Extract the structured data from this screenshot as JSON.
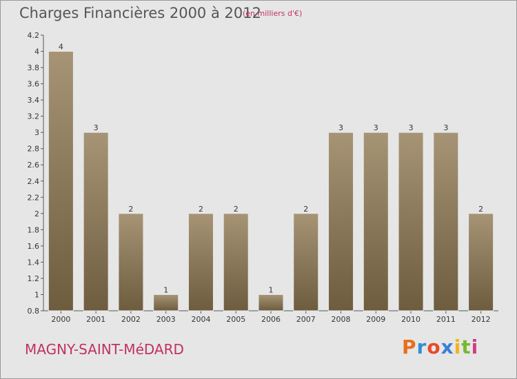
{
  "header": {
    "title": "Charges Financières 2000 à 2012",
    "subtitle": "(en milliers d'€)"
  },
  "footer": {
    "commune": "MAGNY-SAINT-MéDARD",
    "logo": {
      "letters": [
        "P",
        "r",
        "o",
        "x",
        "i",
        "t",
        "i"
      ],
      "colors": [
        "#e8701a",
        "#2e8fd6",
        "#e84a2b",
        "#3a7fd4",
        "#f2b31d",
        "#7bb72f",
        "#d13b8a"
      ]
    }
  },
  "chart_data": {
    "type": "bar",
    "title": "Charges Financières 2000 à 2012",
    "categories": [
      "2000",
      "2001",
      "2002",
      "2003",
      "2004",
      "2005",
      "2006",
      "2007",
      "2008",
      "2009",
      "2010",
      "2011",
      "2012"
    ],
    "values": [
      4,
      3,
      2,
      1,
      2,
      2,
      1,
      2,
      3,
      3,
      3,
      3,
      2
    ],
    "data_labels": [
      "4",
      "3",
      "2",
      "1",
      "2",
      "2",
      "1",
      "2",
      "3",
      "3",
      "3",
      "3",
      "2"
    ],
    "ylim": [
      0.8,
      4.2
    ],
    "yticks": [
      "0.8",
      "1",
      "1.2",
      "1.4",
      "1.6",
      "1.8",
      "2",
      "2.2",
      "2.4",
      "2.6",
      "2.8",
      "3",
      "3.2",
      "3.4",
      "3.6",
      "3.8",
      "4",
      "4.2"
    ],
    "ytick_values": [
      0.8,
      1,
      1.2,
      1.4,
      1.6,
      1.8,
      2,
      2.2,
      2.4,
      2.6,
      2.8,
      3,
      3.2,
      3.4,
      3.6,
      3.8,
      4,
      4.2
    ],
    "xlabel": "",
    "ylabel": "",
    "grid": false,
    "colors": {
      "bar_light": "#a69475",
      "bar_dark": "#6e5c3f",
      "bar_outline": "#e6e6e6",
      "plot_background": "#e6e6e6",
      "axis": "#555555"
    }
  }
}
